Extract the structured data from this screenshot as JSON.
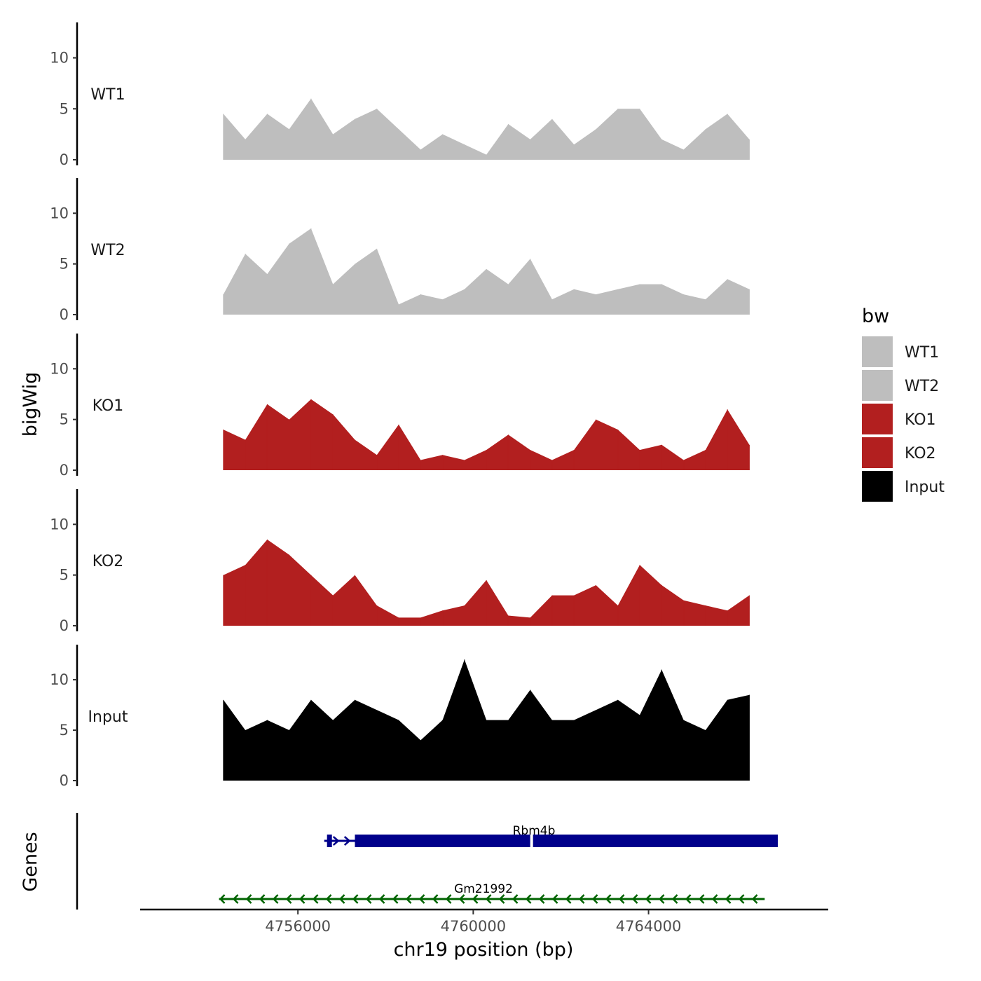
{
  "chart_data": {
    "type": "area",
    "title": "",
    "region": {
      "chrom": "chr19",
      "start": 4754200,
      "end": 4766650
    },
    "xlabel": "chr19 position (bp)",
    "ylabel": "bigWig",
    "genes_label": "Genes",
    "x_ticks": [
      4756000,
      4760000,
      4764000
    ],
    "x_tick_labels": [
      "4756000",
      "4760000",
      "4764000"
    ],
    "ylim": [
      0,
      13
    ],
    "y_ticks": [
      0,
      5,
      10
    ],
    "y_tick_labels": [
      "0",
      "5",
      "10"
    ],
    "legend": {
      "title": "bw",
      "position": "right",
      "entries": [
        {
          "name": "WT1",
          "color": "#bebebe"
        },
        {
          "name": "WT2",
          "color": "#bebebe"
        },
        {
          "name": "KO1",
          "color": "#b21f1f"
        },
        {
          "name": "KO2",
          "color": "#b21f1f"
        },
        {
          "name": "Input",
          "color": "#000000"
        }
      ]
    },
    "x": [
      4754300,
      4754800,
      4755300,
      4755800,
      4756300,
      4756800,
      4757300,
      4757800,
      4758300,
      4758800,
      4759300,
      4759800,
      4760300,
      4760800,
      4761300,
      4761800,
      4762300,
      4762800,
      4763300,
      4763800,
      4764300,
      4764800,
      4765300,
      4765800,
      4766300
    ],
    "series": [
      {
        "name": "WT1",
        "color": "#bebebe",
        "values": [
          4.5,
          2.0,
          4.5,
          3.0,
          6.0,
          2.5,
          4.0,
          5.0,
          3.0,
          1.0,
          2.5,
          1.5,
          0.5,
          3.5,
          2.0,
          4.0,
          1.5,
          3.0,
          5.0,
          5.0,
          2.0,
          1.0,
          3.0,
          4.5,
          2.0
        ]
      },
      {
        "name": "WT2",
        "color": "#bebebe",
        "values": [
          2.0,
          6.0,
          4.0,
          7.0,
          8.5,
          3.0,
          5.0,
          6.5,
          1.0,
          2.0,
          1.5,
          2.5,
          4.5,
          3.0,
          5.5,
          1.5,
          2.5,
          2.0,
          2.5,
          3.0,
          3.0,
          2.0,
          1.5,
          3.5,
          2.5
        ]
      },
      {
        "name": "KO1",
        "color": "#b21f1f",
        "values": [
          4.0,
          3.0,
          6.5,
          5.0,
          7.0,
          5.5,
          3.0,
          1.5,
          4.5,
          1.0,
          1.5,
          1.0,
          2.0,
          3.5,
          2.0,
          1.0,
          2.0,
          5.0,
          4.0,
          2.0,
          2.5,
          1.0,
          2.0,
          6.0,
          2.5
        ]
      },
      {
        "name": "KO2",
        "color": "#b21f1f",
        "values": [
          5.0,
          6.0,
          8.5,
          7.0,
          5.0,
          3.0,
          5.0,
          2.0,
          0.8,
          0.8,
          1.5,
          2.0,
          4.5,
          1.0,
          0.8,
          3.0,
          3.0,
          4.0,
          2.0,
          6.0,
          4.0,
          2.5,
          2.0,
          1.5,
          3.0
        ]
      },
      {
        "name": "Input",
        "color": "#000000",
        "values": [
          8.0,
          5.0,
          6.0,
          5.0,
          8.0,
          6.0,
          8.0,
          7.0,
          6.0,
          4.0,
          6.0,
          12.0,
          6.0,
          6.0,
          9.0,
          6.0,
          6.0,
          7.0,
          8.0,
          6.5,
          11.0,
          6.0,
          5.0,
          8.0,
          8.5
        ]
      }
    ],
    "genes": [
      {
        "name": "Rbm4b",
        "strand": "+",
        "start": 4756600,
        "end": 4766950,
        "color": "#00008b"
      },
      {
        "name": "Gm21992",
        "strand": "-",
        "start": 4754200,
        "end": 4766650,
        "color": "#006400"
      }
    ]
  }
}
